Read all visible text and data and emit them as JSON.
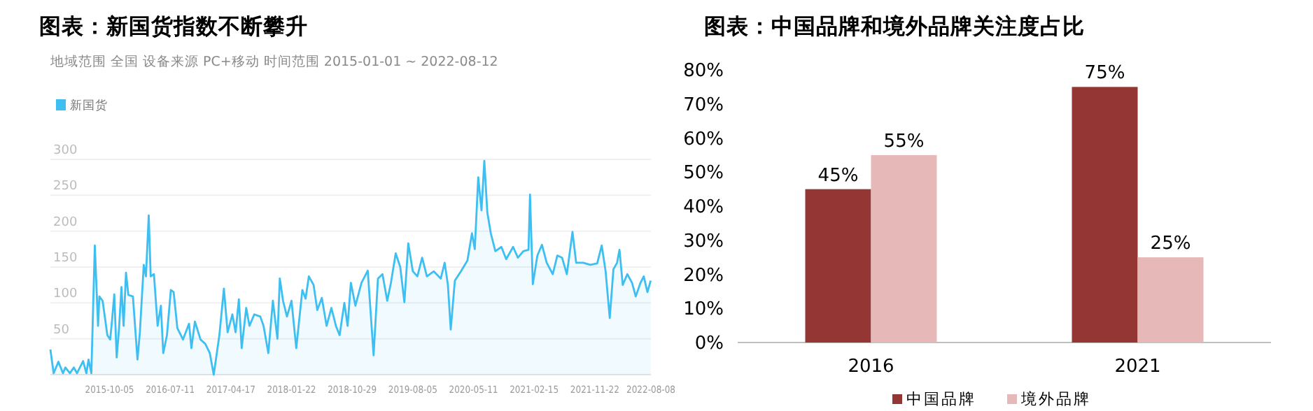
{
  "chart_data": [
    {
      "type": "area",
      "title": "图表：新国货指数不断攀升",
      "subtitle": "地域范围  全国     设备来源  PC+移动     时间范围  2015-01-01 ~ 2022-08-12",
      "legend": "top left",
      "grid": "y",
      "xlim": [
        "2015-01-05",
        "2022-08-08"
      ],
      "ylim": [
        0,
        300
      ],
      "yticks": [
        {
          "value": 0,
          "label": null
        },
        50,
        100,
        150,
        200,
        250,
        300
      ],
      "xticks": [
        "2015-10-05",
        "2016-07-11",
        "2017-04-17",
        "2018-01-22",
        "2018-10-29",
        "2019-08-05",
        "2020-05-11",
        "2021-02-15",
        "2021-11-22",
        "2022-08-08"
      ],
      "x": [
        "2015-01-05",
        "2015-01-20",
        "2015-02-11",
        "2015-03-04",
        "2015-03-15",
        "2015-04-05",
        "2015-04-23",
        "2015-05-08",
        "2015-06-05",
        "2015-06-20",
        "2015-06-30",
        "2015-07-13",
        "2015-07-29",
        "2015-08-13",
        "2015-08-19",
        "2015-09-03",
        "2015-09-25",
        "2015-10-08",
        "2015-10-16",
        "2015-10-27",
        "2015-11-07",
        "2015-11-18",
        "2015-11-29",
        "2015-12-09",
        "2015-12-20",
        "2015-12-31",
        "2016-01-21",
        "2016-02-11",
        "2016-02-22",
        "2016-03-11",
        "2016-03-21",
        "2016-04-03",
        "2016-04-12",
        "2016-04-27",
        "2016-05-14",
        "2016-05-29",
        "2016-06-09",
        "2016-06-26",
        "2016-07-14",
        "2016-07-27",
        "2016-08-13",
        "2016-09-08",
        "2016-10-06",
        "2016-10-17",
        "2016-11-02",
        "2016-11-28",
        "2016-12-20",
        "2017-01-10",
        "2017-01-28",
        "2017-02-23",
        "2017-03-16",
        "2017-04-02",
        "2017-04-24",
        "2017-05-09",
        "2017-05-24",
        "2017-06-06",
        "2017-06-27",
        "2017-07-12",
        "2017-08-03",
        "2017-08-31",
        "2017-09-15",
        "2017-10-07",
        "2017-10-28",
        "2017-11-18",
        "2017-11-29",
        "2017-12-14",
        "2018-01-01",
        "2018-01-22",
        "2018-02-13",
        "2018-03-13",
        "2018-03-28",
        "2018-04-12",
        "2018-05-04",
        "2018-05-21",
        "2018-06-11",
        "2018-07-03",
        "2018-07-25",
        "2018-08-15",
        "2018-09-01",
        "2018-09-23",
        "2018-10-08",
        "2018-10-23",
        "2018-11-13",
        "2018-12-11",
        "2019-01-09",
        "2019-02-05",
        "2019-02-25",
        "2019-03-18",
        "2019-04-09",
        "2019-04-26",
        "2019-05-18",
        "2019-06-08",
        "2019-06-27",
        "2019-07-15",
        "2019-08-05",
        "2019-08-26",
        "2019-09-17",
        "2019-10-09",
        "2019-11-10",
        "2019-12-12",
        "2019-12-30",
        "2020-01-14",
        "2020-01-27",
        "2020-02-15",
        "2020-03-14",
        "2020-04-13",
        "2020-05-04",
        "2020-05-17",
        "2020-06-02",
        "2020-06-17",
        "2020-06-30",
        "2020-07-14",
        "2020-07-30",
        "2020-08-20",
        "2020-09-17",
        "2020-10-09",
        "2020-11-10",
        "2020-12-02",
        "2020-12-27",
        "2021-01-20",
        "2021-01-27",
        "2021-02-09",
        "2021-03-02",
        "2021-03-23",
        "2021-04-14",
        "2021-05-12",
        "2021-06-02",
        "2021-06-24",
        "2021-07-16",
        "2021-08-11",
        "2021-08-28",
        "2021-09-29",
        "2021-11-01",
        "2021-12-03",
        "2021-12-24",
        "2022-01-11",
        "2022-01-30",
        "2022-02-16",
        "2022-03-05",
        "2022-03-16",
        "2022-03-31",
        "2022-04-21",
        "2022-05-13",
        "2022-05-30",
        "2022-06-21",
        "2022-07-06",
        "2022-07-23",
        "2022-08-07"
      ],
      "series": [
        {
          "name": "新国货",
          "color": "#3dbff2",
          "values": [
            35,
            2,
            18,
            2,
            10,
            2,
            10,
            2,
            19,
            2,
            21,
            2,
            180,
            68,
            109,
            103,
            55,
            49,
            74,
            112,
            24,
            65,
            122,
            68,
            142,
            111,
            109,
            21,
            59,
            153,
            137,
            222,
            137,
            140,
            68,
            96,
            30,
            55,
            118,
            115,
            65,
            49,
            71,
            37,
            74,
            49,
            43,
            30,
            0,
            55,
            120,
            59,
            84,
            59,
            105,
            37,
            93,
            68,
            84,
            81,
            68,
            30,
            103,
            50,
            134,
            103,
            81,
            103,
            37,
            118,
            106,
            137,
            125,
            90,
            107,
            68,
            93,
            68,
            55,
            100,
            68,
            128,
            96,
            128,
            145,
            27,
            134,
            140,
            103,
            128,
            169,
            150,
            101,
            183,
            144,
            137,
            163,
            137,
            144,
            134,
            156,
            125,
            63,
            131,
            144,
            159,
            197,
            175,
            275,
            229,
            298,
            226,
            197,
            172,
            178,
            161,
            178,
            163,
            172,
            174,
            251,
            126,
            166,
            181,
            156,
            140,
            166,
            163,
            140,
            199,
            156,
            156,
            153,
            155,
            180,
            144,
            79,
            147,
            156,
            174,
            125,
            140,
            128,
            109,
            128,
            137,
            115,
            131
          ]
        }
      ]
    },
    {
      "type": "bar",
      "title": "图表：中国品牌和境外品牌关注度占比",
      "categories": [
        "2016",
        "2021"
      ],
      "ylim": [
        0,
        80
      ],
      "yticks": [
        {
          "value": 0,
          "label": "0%"
        },
        {
          "value": 10,
          "label": "10%"
        },
        {
          "value": 20,
          "label": "20%"
        },
        {
          "value": 30,
          "label": "30%"
        },
        {
          "value": 40,
          "label": "40%"
        },
        {
          "value": 50,
          "label": "50%"
        },
        {
          "value": 60,
          "label": "60%"
        },
        {
          "value": 70,
          "label": "70%"
        },
        {
          "value": 80,
          "label": "80%"
        }
      ],
      "legend": "bottom",
      "series": [
        {
          "name": "中国品牌",
          "color": "#943634",
          "values": [
            45,
            75
          ],
          "value_labels": [
            "45%",
            "75%"
          ]
        },
        {
          "name": "境外品牌",
          "color": "#e6b9b8",
          "values": [
            55,
            25
          ],
          "value_labels": [
            "55%",
            "25%"
          ]
        }
      ]
    }
  ]
}
